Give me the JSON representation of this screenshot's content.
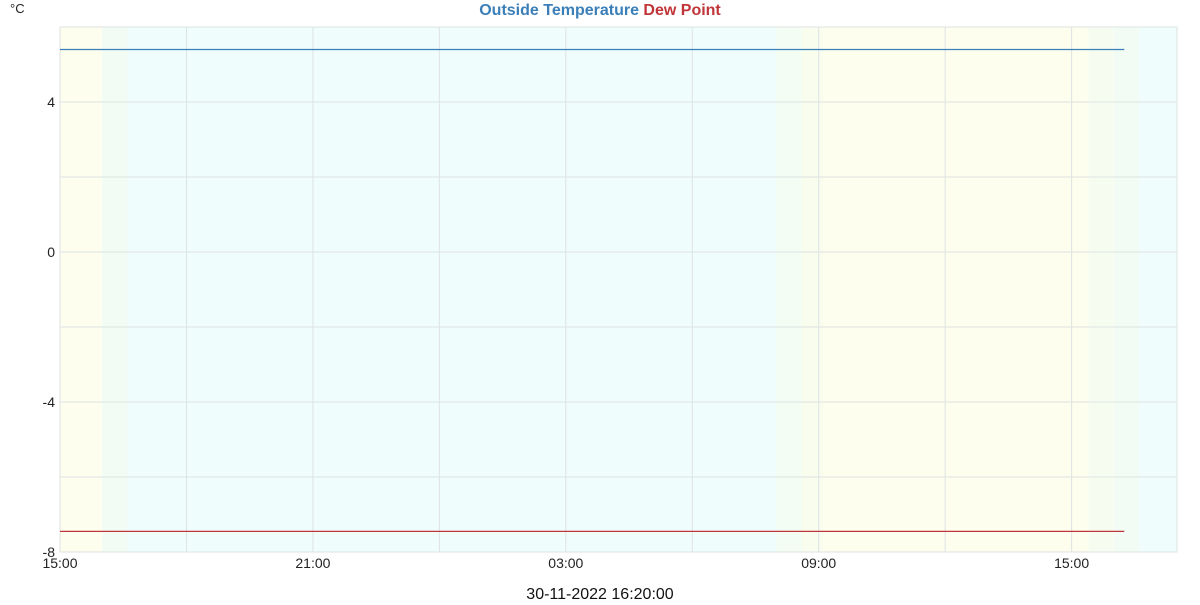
{
  "chart_data": {
    "type": "line",
    "title_parts": [
      {
        "text": "Outside Temperature",
        "color": "#3b7fb8"
      },
      {
        "text": "Dew Point",
        "color": "#c0353a"
      }
    ],
    "ylabel": "°C",
    "xlabel": "30-11-2022 16:20:00",
    "ylim": [
      -8,
      6
    ],
    "yticks": [
      4,
      0,
      -4,
      -8
    ],
    "x_hours_range": [
      0,
      26.5
    ],
    "xticks": [
      {
        "hour": 0,
        "label": "15:00"
      },
      {
        "hour": 6,
        "label": "21:00"
      },
      {
        "hour": 12,
        "label": "03:00"
      },
      {
        "hour": 18,
        "label": "09:00"
      },
      {
        "hour": 24,
        "label": "15:00"
      }
    ],
    "series": [
      {
        "name": "Outside Temperature",
        "color": "#3b7fb8",
        "x": [
          0,
          25.25
        ],
        "y": [
          5.4,
          5.4
        ]
      },
      {
        "name": "Dew Point",
        "color": "#c0353a",
        "x": [
          0,
          25.25
        ],
        "y": [
          -7.45,
          -7.45
        ]
      }
    ],
    "grid": true,
    "background_bands": [
      {
        "from": 0,
        "to": 1.0,
        "color": "#fdfeee"
      },
      {
        "from": 1.0,
        "to": 1.6,
        "color": "#f2fcf4"
      },
      {
        "from": 1.6,
        "to": 17.0,
        "color": "#effdfc"
      },
      {
        "from": 17.0,
        "to": 17.6,
        "color": "#f3fdf3"
      },
      {
        "from": 17.6,
        "to": 18.1,
        "color": "#f8fdee"
      },
      {
        "from": 18.1,
        "to": 24.4,
        "color": "#fefeee"
      },
      {
        "from": 24.4,
        "to": 25.0,
        "color": "#f6fdf0"
      },
      {
        "from": 25.0,
        "to": 25.6,
        "color": "#f2fcf4"
      },
      {
        "from": 25.6,
        "to": 26.5,
        "color": "#effdfc"
      }
    ]
  }
}
